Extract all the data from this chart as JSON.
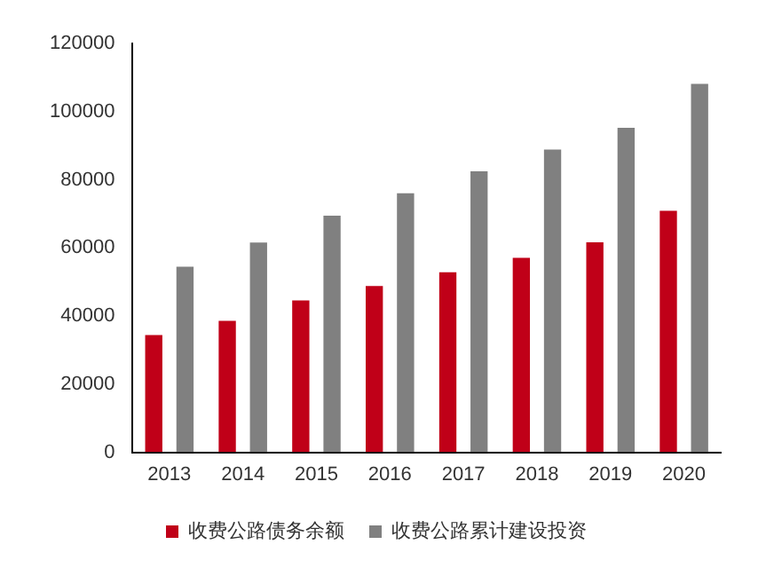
{
  "chart_data": {
    "type": "bar",
    "categories": [
      "2013",
      "2014",
      "2015",
      "2016",
      "2017",
      "2018",
      "2019",
      "2020"
    ],
    "series": [
      {
        "name": "收费公路债务余额",
        "color": "#c00018",
        "values": [
          34400,
          38600,
          44600,
          48800,
          52900,
          57100,
          61700,
          70900
        ]
      },
      {
        "name": "收费公路累计建设投资",
        "color": "#808080",
        "values": [
          54500,
          61600,
          69500,
          76100,
          82500,
          88900,
          95300,
          108200
        ]
      }
    ],
    "ylim": [
      0,
      120000
    ],
    "yticks": [
      0,
      20000,
      40000,
      60000,
      80000,
      100000,
      120000
    ],
    "grid": false,
    "legend": "bottom"
  }
}
